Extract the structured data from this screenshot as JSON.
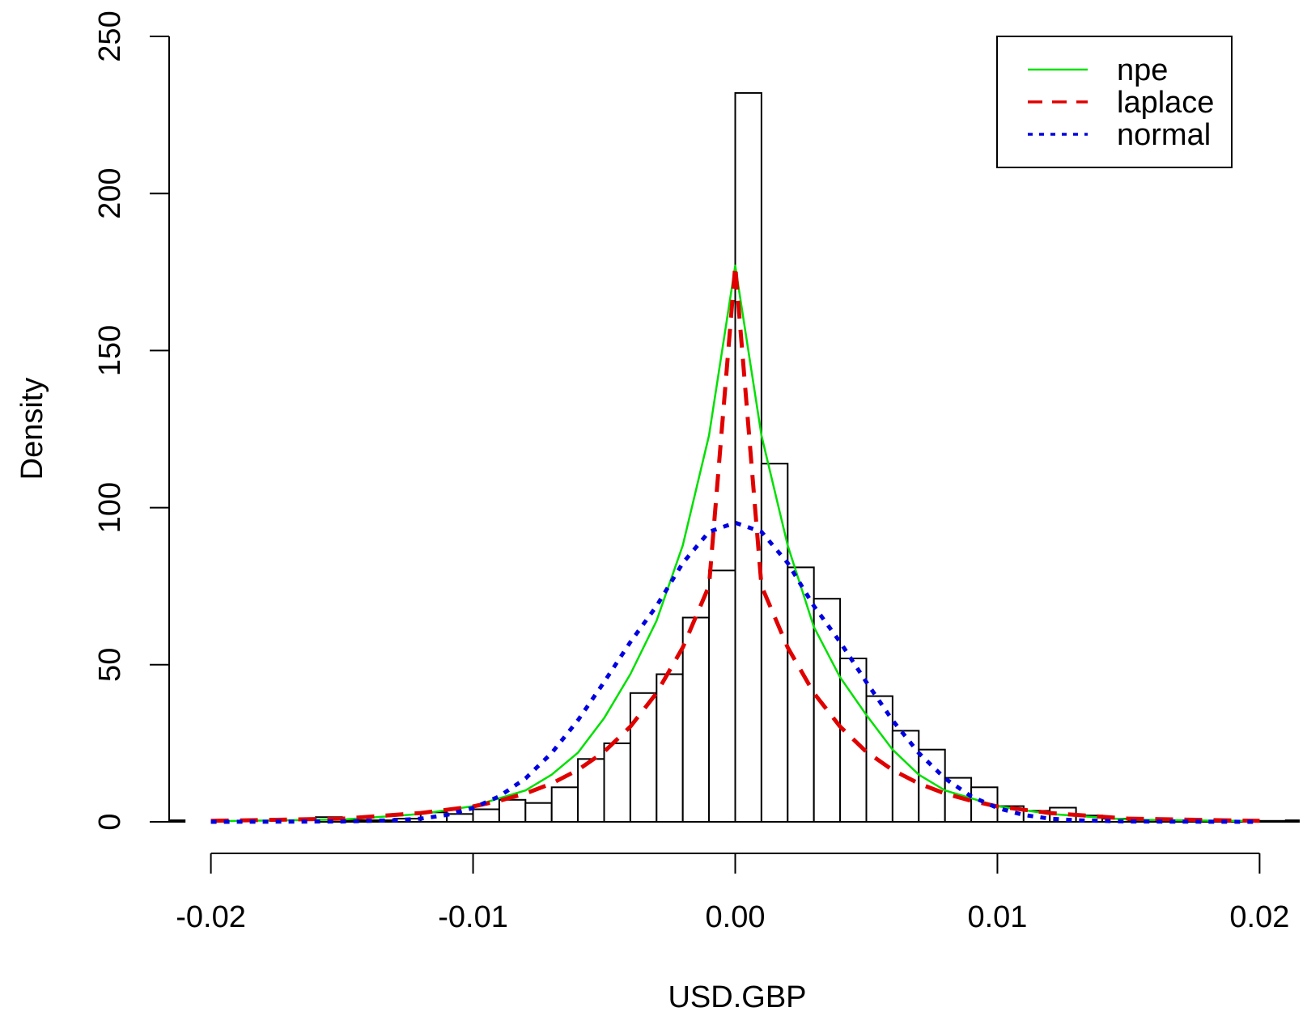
{
  "chart_data": {
    "type": "histogram",
    "title": "",
    "xlabel": "USD.GBP",
    "ylabel": "Density",
    "xlim": [
      -0.0215,
      0.0215
    ],
    "ylim": [
      0,
      250
    ],
    "x_ticks": [
      -0.02,
      -0.01,
      0.0,
      0.01,
      0.02
    ],
    "x_tick_labels": [
      "-0.02",
      "-0.01",
      "0.00",
      "0.01",
      "0.02"
    ],
    "y_ticks": [
      0,
      50,
      100,
      150,
      200,
      250
    ],
    "y_tick_labels": [
      "0",
      "50",
      "100",
      "150",
      "200",
      "250"
    ],
    "grid": false,
    "legend_position": "top-right",
    "bins": {
      "width": 0.001,
      "edges_start": -0.022,
      "densities": [
        0.5,
        0,
        0,
        0,
        0,
        0,
        1.5,
        0.5,
        0.5,
        1,
        3,
        2.5,
        4,
        7,
        6,
        11,
        20,
        25,
        41,
        47,
        65,
        80,
        232,
        114,
        81,
        71,
        52,
        40,
        29,
        23,
        14,
        11,
        5,
        3.5,
        4.5,
        2,
        1,
        0.5,
        0.5,
        0.3,
        0.3,
        0.3,
        0.3,
        0.5
      ]
    },
    "series": [
      {
        "name": "npe",
        "color": "#00e000",
        "style": "solid",
        "x": [
          -0.02,
          -0.015,
          -0.012,
          -0.01,
          -0.008,
          -0.007,
          -0.006,
          -0.005,
          -0.004,
          -0.003,
          -0.002,
          -0.001,
          -0.0005,
          0.0,
          0.0005,
          0.001,
          0.002,
          0.003,
          0.004,
          0.005,
          0.006,
          0.007,
          0.008,
          0.01,
          0.012,
          0.015,
          0.02
        ],
        "y": [
          0.2,
          0.7,
          2.5,
          5,
          10,
          15,
          22,
          33,
          47,
          64,
          88,
          123,
          150,
          177,
          150,
          123,
          88,
          62,
          46,
          34,
          23,
          15,
          10,
          5,
          2.5,
          0.7,
          0.2
        ]
      },
      {
        "name": "laplace",
        "color": "#e00000",
        "style": "dashed",
        "x": [
          -0.02,
          -0.015,
          -0.012,
          -0.01,
          -0.009,
          -0.008,
          -0.007,
          -0.006,
          -0.005,
          -0.004,
          -0.003,
          -0.002,
          -0.001,
          0.0,
          0.001,
          0.002,
          0.003,
          0.004,
          0.005,
          0.006,
          0.007,
          0.008,
          0.009,
          0.01,
          0.012,
          0.015,
          0.02
        ],
        "y": [
          0.3,
          1.0,
          2.8,
          4.9,
          6.7,
          9.0,
          12.2,
          16.5,
          22.3,
          30.3,
          41.0,
          55.5,
          75.1,
          177,
          75.1,
          55.5,
          41.0,
          30.3,
          22.3,
          16.5,
          12.2,
          9.0,
          6.7,
          4.9,
          2.8,
          1.0,
          0.3
        ]
      },
      {
        "name": "normal",
        "color": "#0000e0",
        "style": "dotted",
        "x": [
          -0.02,
          -0.015,
          -0.013,
          -0.012,
          -0.011,
          -0.01,
          -0.009,
          -0.008,
          -0.007,
          -0.006,
          -0.005,
          -0.004,
          -0.003,
          -0.002,
          -0.001,
          0.0,
          0.001,
          0.002,
          0.003,
          0.004,
          0.005,
          0.006,
          0.007,
          0.008,
          0.009,
          0.01,
          0.011,
          0.012,
          0.013,
          0.015,
          0.02
        ],
        "y": [
          0.0,
          0.1,
          0.5,
          1.0,
          2.2,
          4.4,
          8.1,
          13.8,
          21.9,
          32.3,
          44.5,
          57.2,
          68.7,
          82.4,
          92.3,
          95.2,
          92.3,
          82.4,
          68.7,
          57.2,
          44.5,
          32.3,
          21.9,
          13.8,
          8.1,
          4.4,
          2.2,
          1.0,
          0.5,
          0.1,
          0.0
        ]
      }
    ]
  }
}
